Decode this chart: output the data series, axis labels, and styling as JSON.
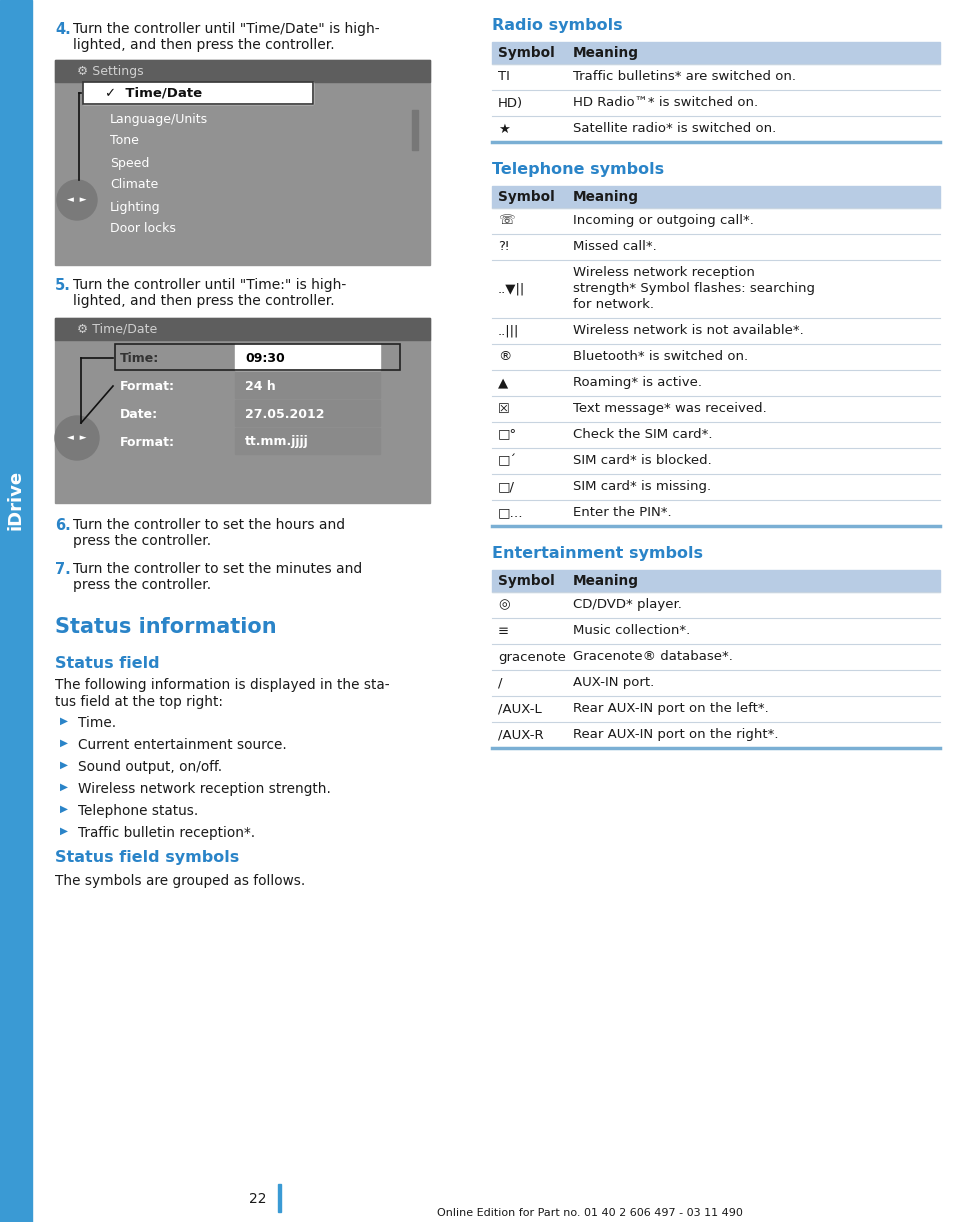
{
  "page_bg": "#ffffff",
  "blue_title": "#2a84c8",
  "blue_sidebar": "#3a9ad4",
  "header_bg": "#b8cce4",
  "divider_light": "#c8d4e0",
  "divider_blue": "#7aafd4",
  "text_black": "#1a1a1a",
  "screen_bg": "#999999",
  "screen_dark": "#666666",
  "screen_mid": "#888888",
  "page_num": "22",
  "footer": "Online Edition for Part no. 01 40 2 606 497 - 03 11 490",
  "sidebar_label": "iDrive",
  "steps": [
    {
      "num": "4.",
      "text": "Turn the controller until \"Time/Date\" is high-\nlighted, and then press the controller."
    },
    {
      "num": "5.",
      "text": "Turn the controller until \"Time:\" is high-\nlighted, and then press the controller."
    },
    {
      "num": "6.",
      "text": "Turn the controller to set the hours and\npress the controller."
    },
    {
      "num": "7.",
      "text": "Turn the controller to set the minutes and\npress the controller."
    }
  ],
  "status_section": "Status information",
  "status_field_title": "Status field",
  "status_body1": "The following information is displayed in the sta-",
  "status_body2": "tus field at the top right:",
  "status_bullets": [
    "Time.",
    "Current entertainment source.",
    "Sound output, on/off.",
    "Wireless network reception strength.",
    "Telephone status.",
    "Traffic bulletin reception*."
  ],
  "status_symbols_title": "Status field symbols",
  "status_symbols_body": "The symbols are grouped as follows.",
  "radio_title": "Radio symbols",
  "radio_rows": [
    {
      "sym": "TI",
      "meaning": "Traffic bulletins* are switched on."
    },
    {
      "sym": "HD)",
      "meaning": "HD Radio™* is switched on."
    },
    {
      "sym": "★",
      "meaning": "Satellite radio* is switched on."
    }
  ],
  "telephone_title": "Telephone symbols",
  "telephone_rows": [
    {
      "sym": "☏",
      "meaning": "Incoming or outgoing call*.",
      "lines": 1
    },
    {
      "sym": "⁈",
      "meaning": "Missed call*.",
      "lines": 1
    },
    {
      "sym": "..▼||",
      "meaning": "Wireless network reception\nstrength* Symbol flashes: searching\nfor network.",
      "lines": 3
    },
    {
      "sym": "..|||",
      "meaning": "Wireless network is not available*.",
      "lines": 1
    },
    {
      "sym": "®",
      "meaning": "Bluetooth* is switched on.",
      "lines": 1
    },
    {
      "sym": "▲",
      "meaning": "Roaming* is active.",
      "lines": 1
    },
    {
      "sym": "☒",
      "meaning": "Text message* was received.",
      "lines": 1
    },
    {
      "sym": "□°",
      "meaning": "Check the SIM card*.",
      "lines": 1
    },
    {
      "sym": "□´",
      "meaning": "SIM card* is blocked.",
      "lines": 1
    },
    {
      "sym": "□/",
      "meaning": "SIM card* is missing.",
      "lines": 1
    },
    {
      "sym": "□…",
      "meaning": "Enter the PIN*.",
      "lines": 1
    }
  ],
  "entertainment_title": "Entertainment symbols",
  "entertainment_rows": [
    {
      "sym": "◎",
      "meaning": "CD/DVD* player.",
      "lines": 1
    },
    {
      "sym": "≡",
      "meaning": "Music collection*.",
      "lines": 1
    },
    {
      "sym": "gracenote",
      "meaning": "Gracenote® database*.",
      "lines": 1
    },
    {
      "sym": "/",
      "meaning": "AUX-IN port.",
      "lines": 1
    },
    {
      "sym": "/AUX-L",
      "meaning": "Rear AUX-IN port on the left*.",
      "lines": 1
    },
    {
      "sym": "/AUX-R",
      "meaning": "Rear AUX-IN port on the right*.",
      "lines": 1
    }
  ]
}
